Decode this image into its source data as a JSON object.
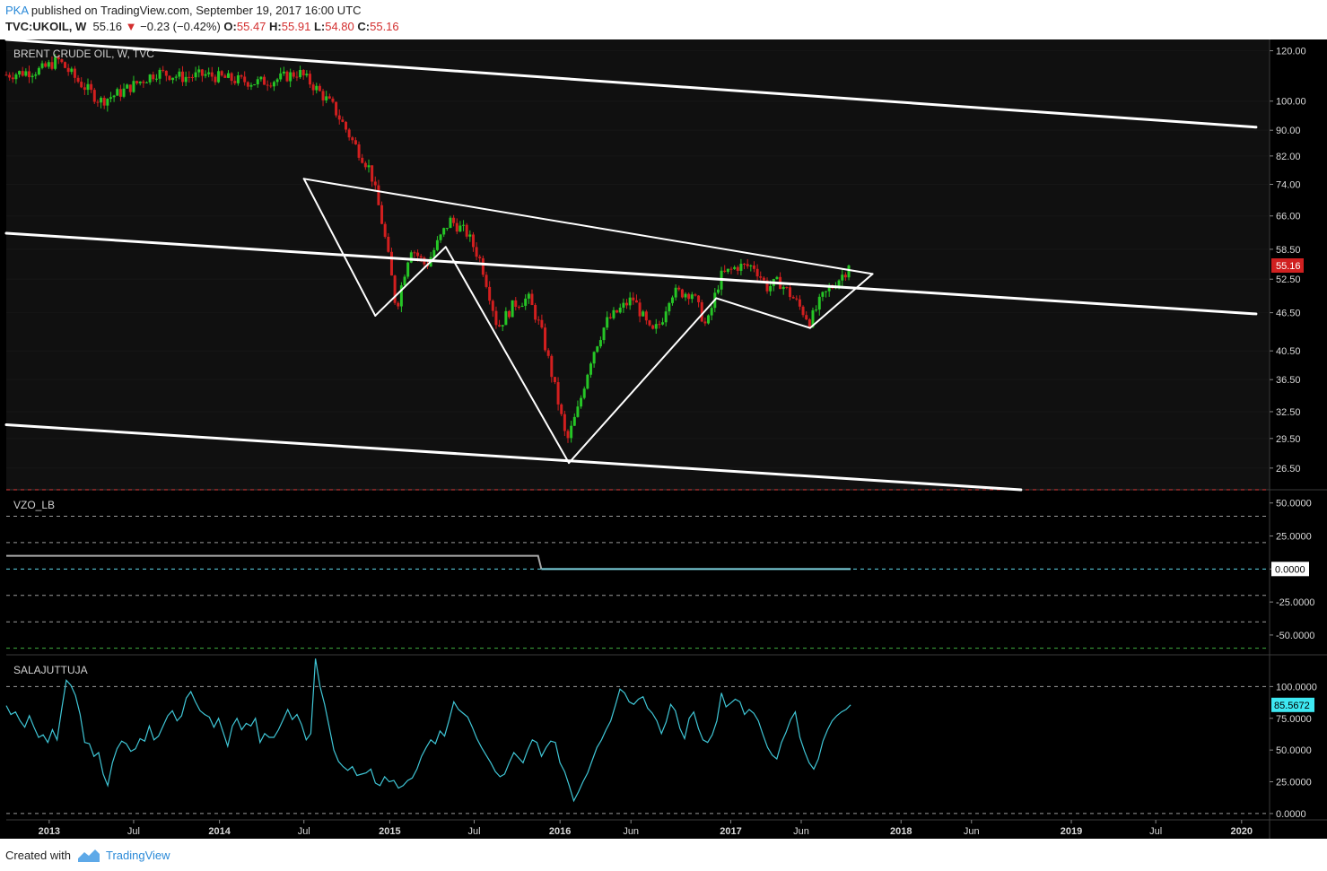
{
  "header": {
    "author": "PKA",
    "published": "published on TradingView.com, September 19, 2017 16:00 UTC",
    "symbol": "TVC:UKOIL, W",
    "price": "55.16",
    "change_arrow": "▼",
    "change": "−0.23 (−0.42%)",
    "open_label": "O:",
    "open": "55.47",
    "high_label": "H:",
    "high": "55.91",
    "low_label": "L:",
    "low": "54.80",
    "close_label": "C:",
    "close": "55.16"
  },
  "footer": {
    "created_with": "Created with",
    "brand": "TradingView"
  },
  "colors": {
    "up": "#26c526",
    "down": "#d21f1f",
    "panel_bg": "#0e0e0e",
    "price_panel_bg": "#101010",
    "trendline": "#ffffff",
    "vzo_line": "#7dd4e0",
    "salajuttuja_line": "#3fc6d6",
    "price_label_bg": "#d02020"
  },
  "chart_data": [
    {
      "type": "candlestick",
      "title": "BRENT CRUDE OIL, W, TVC",
      "yscale": "log",
      "ylim": [
        24.5,
        125
      ],
      "y_ticks": [
        "120.00",
        "100.00",
        "90.00",
        "82.00",
        "74.00",
        "66.00",
        "58.50",
        "52.50",
        "46.50",
        "40.50",
        "36.50",
        "32.50",
        "29.50",
        "26.50"
      ],
      "last_price_label": "55.16",
      "x_ticks": [
        "2013",
        "Jul",
        "2014",
        "Jul",
        "2015",
        "Jul",
        "2016",
        "Jun",
        "2017",
        "Jun",
        "2018",
        "Jun",
        "2019",
        "Jul",
        "2020"
      ],
      "x_tick_dates": [
        "2013-01-01",
        "2013-07-01",
        "2014-01-01",
        "2014-07-01",
        "2015-01-01",
        "2015-07-01",
        "2016-01-01",
        "2016-06-01",
        "2017-01-01",
        "2017-06-01",
        "2018-01-01",
        "2018-06-01",
        "2019-01-01",
        "2019-07-01",
        "2020-01-01"
      ],
      "x_range": [
        "2012-10-01",
        "2020-03-01"
      ],
      "price_path_dates": [
        "2012-10-01",
        "2012-12-15",
        "2013-01-20",
        "2013-03-01",
        "2013-04-20",
        "2013-06-01",
        "2013-08-20",
        "2013-10-15",
        "2013-12-01",
        "2014-02-01",
        "2014-03-20",
        "2014-05-01",
        "2014-06-20",
        "2014-07-20",
        "2014-09-01",
        "2014-10-15",
        "2014-11-20",
        "2014-12-20",
        "2015-01-15",
        "2015-02-15",
        "2015-03-20",
        "2015-05-10",
        "2015-06-15",
        "2015-07-15",
        "2015-08-20",
        "2015-09-25",
        "2015-10-25",
        "2015-11-20",
        "2015-12-15",
        "2016-01-15",
        "2016-02-10",
        "2016-03-10",
        "2016-04-10",
        "2016-06-05",
        "2016-07-15",
        "2016-08-05",
        "2016-08-25",
        "2016-10-10",
        "2016-11-10",
        "2016-12-10",
        "2017-01-15",
        "2017-02-20",
        "2017-03-20",
        "2017-04-15",
        "2017-05-15",
        "2017-06-20",
        "2017-07-15",
        "2017-08-15",
        "2017-09-15"
      ],
      "price_path_closes": [
        110,
        112,
        116,
        108,
        100,
        103,
        111,
        109,
        110,
        108,
        107,
        108,
        111,
        106,
        98,
        86,
        78,
        62,
        47,
        59,
        55,
        65,
        62,
        56,
        44,
        48,
        49,
        44,
        37,
        29,
        33,
        40,
        45,
        49,
        43,
        45,
        50,
        50,
        44,
        53,
        55,
        55,
        51,
        52,
        49,
        45,
        49,
        52,
        55.16
      ],
      "trendlines": [
        {
          "from": [
            "2012-10-01",
            125
          ],
          "to": [
            "2020-02-01",
            91
          ]
        },
        {
          "from": [
            "2012-10-01",
            62
          ],
          "to": [
            "2020-02-01",
            46.3
          ]
        },
        {
          "from": [
            "2012-10-01",
            31
          ],
          "to": [
            "2018-09-15",
            24.5
          ]
        },
        {
          "from": [
            "2014-07-01",
            75.5
          ],
          "to": [
            "2017-11-01",
            53.5
          ]
        },
        {
          "from": [
            "2014-07-01",
            75.5
          ],
          "to": [
            "2014-12-01",
            46
          ]
        },
        {
          "from": [
            "2014-12-01",
            46
          ],
          "to": [
            "2015-05-01",
            59
          ]
        },
        {
          "from": [
            "2015-05-01",
            59
          ],
          "to": [
            "2016-01-20",
            27
          ]
        },
        {
          "from": [
            "2016-01-20",
            27
          ],
          "to": [
            "2016-12-01",
            49
          ]
        },
        {
          "from": [
            "2016-12-01",
            49
          ],
          "to": [
            "2017-06-20",
            44
          ]
        },
        {
          "from": [
            "2017-06-20",
            44
          ],
          "to": [
            "2017-11-01",
            53.5
          ]
        }
      ]
    },
    {
      "type": "line",
      "title": "VZO_LB",
      "ylim": [
        -65,
        60
      ],
      "y_ticks": [
        "50.0000",
        "25.0000",
        "0.0000",
        "-25.0000",
        "-50.0000"
      ],
      "last_value_label": "0.0000",
      "levels": [
        60,
        40,
        20,
        0,
        -20,
        -40,
        -60
      ],
      "level_colors": [
        "#e23b3b",
        "#9a9a9a",
        "#9a9a9a",
        "#5fd8ea",
        "#9a9a9a",
        "#9a9a9a",
        "#3fae3f"
      ],
      "x": [
        "2012-10-01",
        "2015-11-15",
        "2015-11-22",
        "2017-09-15"
      ],
      "y": [
        10,
        10,
        0,
        0
      ]
    },
    {
      "type": "line",
      "title": "SALAJUTTUJA",
      "ylim": [
        -5,
        125
      ],
      "y_ticks": [
        "100.0000",
        "75.0000",
        "50.0000",
        "25.0000",
        "0.0000"
      ],
      "last_value_label": "85.5672",
      "levels": [
        100,
        0
      ],
      "values": [
        85,
        78,
        80,
        73,
        68,
        77,
        68,
        60,
        62,
        56,
        66,
        58,
        82,
        105,
        101,
        93,
        78,
        56,
        55,
        45,
        48,
        31,
        22,
        40,
        51,
        57,
        55,
        49,
        51,
        59,
        57,
        69,
        58,
        61,
        69,
        77,
        81,
        73,
        77,
        91,
        96,
        88,
        81,
        78,
        76,
        68,
        75,
        64,
        53,
        69,
        75,
        66,
        71,
        69,
        75,
        56,
        63,
        60,
        60,
        66,
        74,
        82,
        74,
        78,
        70,
        58,
        63,
        122,
        100,
        86,
        68,
        50,
        41,
        37,
        34,
        37,
        30,
        31,
        32,
        35,
        24,
        22,
        29,
        25,
        26,
        20,
        22,
        26,
        28,
        35,
        45,
        52,
        58,
        55,
        65,
        61,
        74,
        88,
        82,
        79,
        76,
        68,
        59,
        52,
        46,
        40,
        33,
        29,
        31,
        40,
        48,
        44,
        40,
        50,
        58,
        56,
        45,
        52,
        57,
        56,
        40,
        33,
        22,
        10,
        17,
        25,
        32,
        42,
        52,
        58,
        66,
        73,
        85,
        98,
        95,
        88,
        86,
        90,
        92,
        83,
        79,
        73,
        63,
        72,
        86,
        81,
        67,
        59,
        75,
        80,
        67,
        58,
        56,
        62,
        73,
        95,
        84,
        87,
        90,
        88,
        78,
        82,
        79,
        73,
        62,
        52,
        46,
        43,
        56,
        64,
        74,
        80,
        60,
        49,
        40,
        35,
        43,
        57,
        66,
        73,
        77,
        80,
        82,
        85.5672
      ]
    }
  ]
}
